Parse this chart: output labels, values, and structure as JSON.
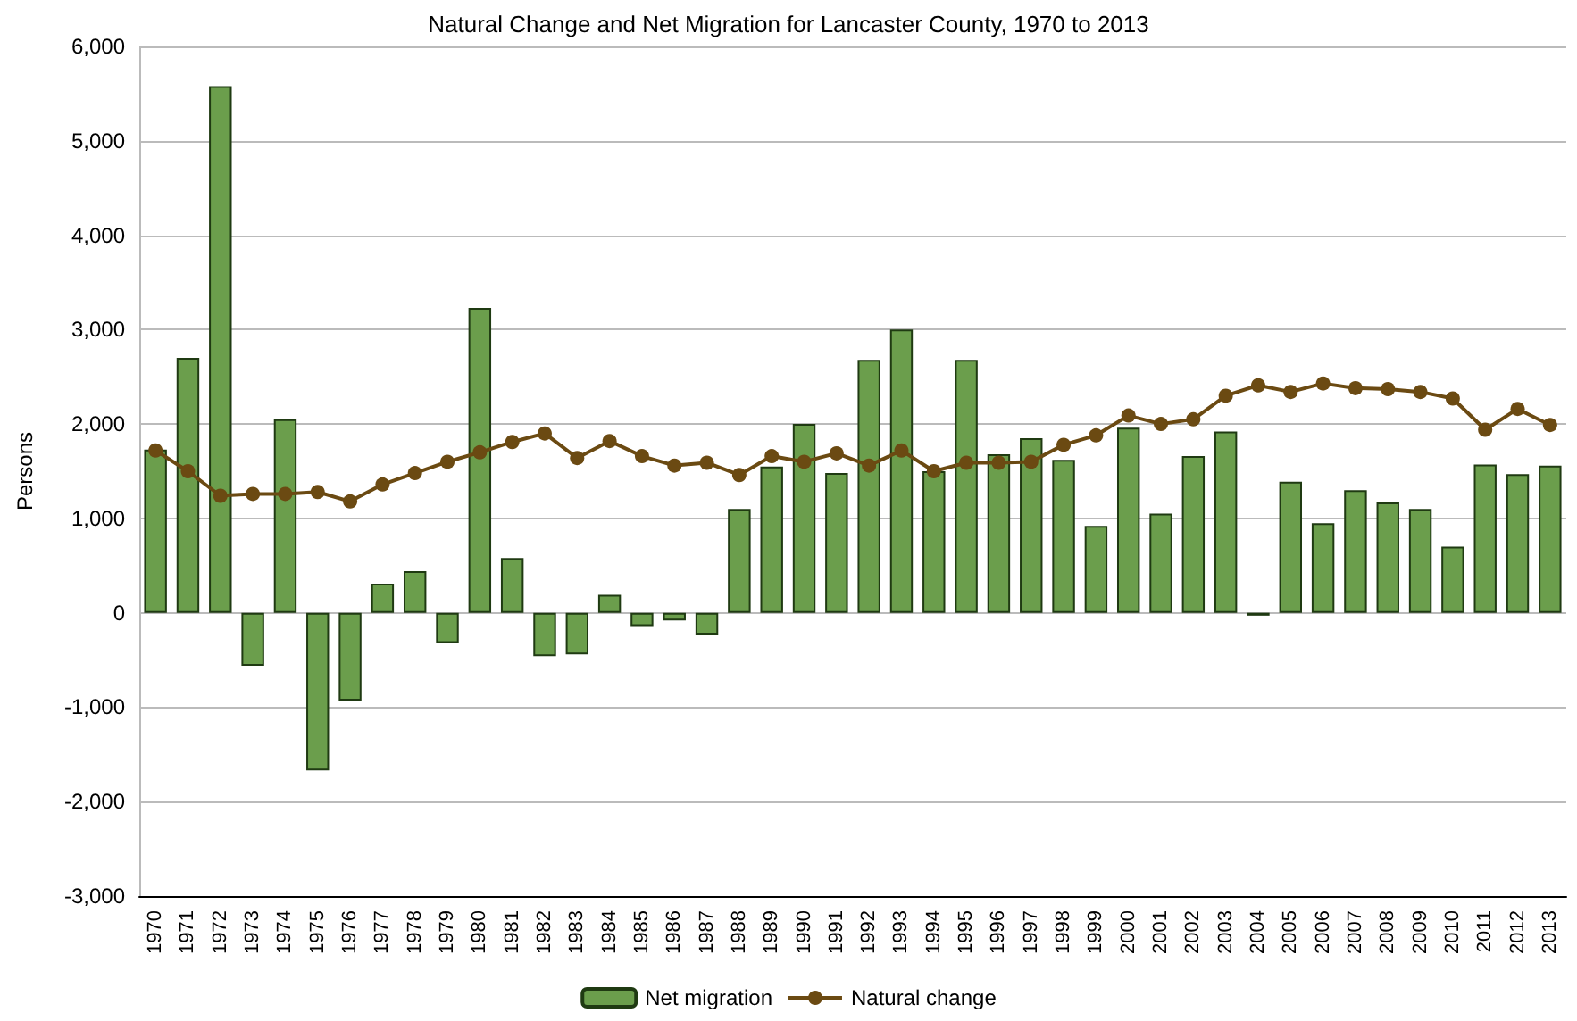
{
  "chart_data": {
    "type": "bar",
    "title": "Natural Change and Net Migration for Lancaster County, 1970 to 2013",
    "ylabel": "Persons",
    "categories": [
      "1970",
      "1971",
      "1972",
      "1973",
      "1974",
      "1975",
      "1976",
      "1977",
      "1978",
      "1979",
      "1980",
      "1981",
      "1982",
      "1983",
      "1984",
      "1985",
      "1986",
      "1987",
      "1988",
      "1989",
      "1990",
      "1991",
      "1992",
      "1993",
      "1994",
      "1995",
      "1996",
      "1997",
      "1998",
      "1999",
      "2000",
      "2001",
      "2002",
      "2003",
      "2004",
      "2005",
      "2006",
      "2007",
      "2008",
      "2009",
      "2010",
      "2011",
      "2012",
      "2013"
    ],
    "series": [
      {
        "name": "Net migration",
        "color": "#6b9e4c",
        "values": [
          1730,
          2700,
          5580,
          -560,
          2050,
          -1670,
          -930,
          310,
          440,
          -320,
          3230,
          580,
          -460,
          -440,
          190,
          -140,
          -80,
          -230,
          1100,
          1550,
          2000,
          1480,
          2680,
          3000,
          1500,
          2680,
          1680,
          1850,
          1620,
          920,
          1960,
          1050,
          1660,
          1920,
          -30,
          1390,
          950,
          1300,
          1170,
          1100,
          700,
          1570,
          1470,
          1560
        ]
      },
      {
        "name": "Natural change",
        "type": "line",
        "color": "#6b4a12",
        "marker": "circle",
        "values": [
          1720,
          1500,
          1240,
          1260,
          1260,
          1280,
          1180,
          1360,
          1480,
          1600,
          1700,
          1810,
          1900,
          1640,
          1820,
          1660,
          1560,
          1590,
          1460,
          1660,
          1600,
          1690,
          1560,
          1720,
          1500,
          1590,
          1590,
          1600,
          1780,
          1880,
          2090,
          2000,
          2050,
          2300,
          2410,
          2340,
          2430,
          2380,
          2370,
          2340,
          2270,
          1940,
          2160,
          1990
        ]
      }
    ],
    "ylim": [
      -3000,
      6000
    ],
    "yticks": [
      {
        "value": -3000,
        "label": "-3,000"
      },
      {
        "value": -2000,
        "label": "-2,000"
      },
      {
        "value": -1000,
        "label": "-1,000"
      },
      0,
      {
        "value": 1000,
        "label": "1,000"
      },
      {
        "value": 2000,
        "label": "2,000"
      },
      {
        "value": 3000,
        "label": "3,000"
      },
      {
        "value": 4000,
        "label": "4,000"
      },
      {
        "value": 5000,
        "label": "5,000"
      },
      {
        "value": 6000,
        "label": "6,000"
      }
    ],
    "grid": "y",
    "legend": "bottom"
  }
}
